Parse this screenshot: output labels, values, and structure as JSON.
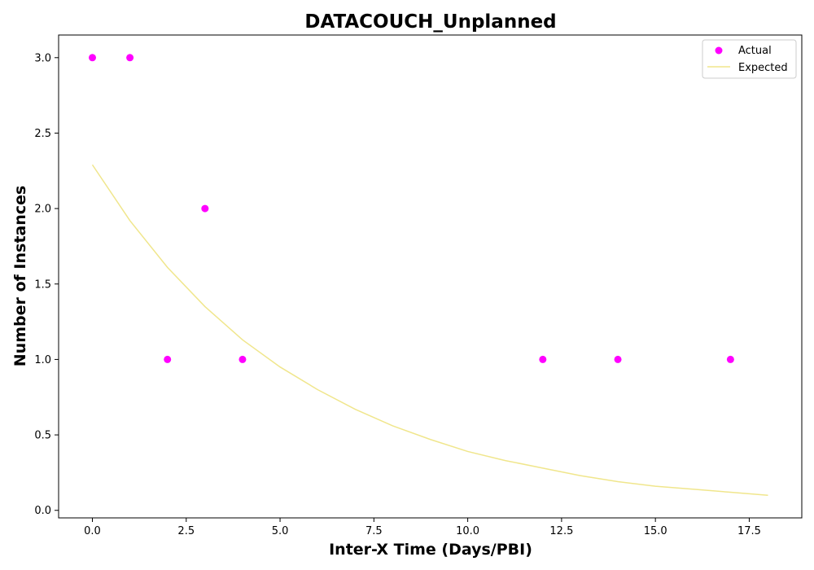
{
  "chart_data": {
    "type": "scatter",
    "title": "DATACOUCH_Unplanned",
    "xlabel": "Inter-X Time (Days/PBI)",
    "ylabel": "Number of Instances",
    "xlim": [
      -0.9,
      18.9
    ],
    "ylim": [
      -0.05,
      3.15
    ],
    "x_ticks": [
      0.0,
      2.5,
      5.0,
      7.5,
      10.0,
      12.5,
      15.0,
      17.5
    ],
    "x_tick_labels": [
      "0.0",
      "2.5",
      "5.0",
      "7.5",
      "10.0",
      "12.5",
      "15.0",
      "17.5"
    ],
    "y_ticks": [
      0.0,
      0.5,
      1.0,
      1.5,
      2.0,
      2.5,
      3.0
    ],
    "y_tick_labels": [
      "0.0",
      "0.5",
      "1.0",
      "1.5",
      "2.0",
      "2.5",
      "3.0"
    ],
    "grid": false,
    "legend_position": "top-right",
    "series": [
      {
        "name": "Actual",
        "kind": "scatter",
        "color": "#ff00ff",
        "x": [
          0,
          1,
          2,
          3,
          4,
          12,
          14,
          17
        ],
        "y": [
          3,
          3,
          1,
          2,
          1,
          1,
          1,
          1
        ]
      },
      {
        "name": "Expected",
        "kind": "line",
        "color": "#f0e68c",
        "x": [
          0,
          1,
          2,
          3,
          4,
          5,
          6,
          7,
          8,
          9,
          10,
          11,
          12,
          13,
          14,
          15,
          16,
          17,
          18
        ],
        "y": [
          2.29,
          1.92,
          1.61,
          1.35,
          1.13,
          0.95,
          0.8,
          0.67,
          0.56,
          0.47,
          0.39,
          0.33,
          0.28,
          0.23,
          0.19,
          0.16,
          0.14,
          0.12,
          0.1
        ]
      }
    ]
  }
}
